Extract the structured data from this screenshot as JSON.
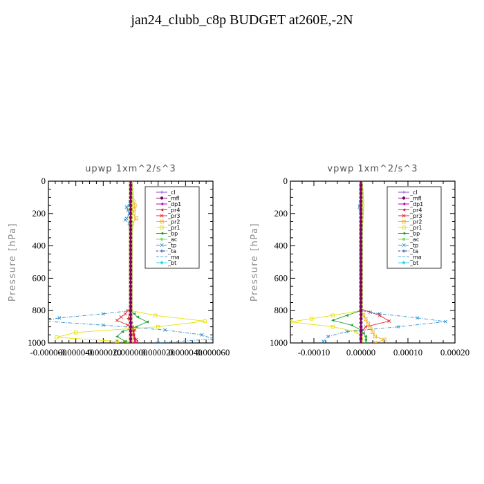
{
  "figure": {
    "title": "jan24_clubb_c8p  BUDGET at260E,-2N"
  },
  "colors": {
    "cl": "#8e44d6",
    "mfl": "#800060",
    "dp1": "#c000b0",
    "pr4": "#d02040",
    "pr3": "#e8242c",
    "pr2": "#f0b020",
    "pr1": "#e8e000",
    "bp": "#1f9e3a",
    "ac": "#80e060",
    "tp": "#2a8cc8",
    "ta": "#1c3aa0",
    "ma": "#4aa8e0",
    "bt": "#30d8e8"
  },
  "chart_data": [
    {
      "type": "line",
      "title": "upwp   1xm^2/s^3",
      "ylabel": "Pressure [hPa]",
      "xlim": [
        -6e-05,
        6e-05
      ],
      "ylim": [
        1000,
        0
      ],
      "y_inverted": true,
      "xtick_labels": [
        "-0.000060",
        "-0.000040",
        "-0.000020",
        "0.000000",
        "0.000020",
        "0.000040",
        "0.000060"
      ],
      "xtick_values": [
        -6e-05,
        -4e-05,
        -2e-05,
        0,
        2e-05,
        4e-05,
        6e-05
      ],
      "ytick_labels": [
        "0",
        "200",
        "400",
        "600",
        "800",
        "1000"
      ],
      "ytick_values": [
        0,
        200,
        400,
        600,
        800,
        1000
      ],
      "legend_position": "upper-right",
      "series": [
        {
          "name": "_cl",
          "key": "cl",
          "y": [
            0,
            100,
            200,
            300,
            400,
            500,
            600,
            700,
            800,
            850,
            900,
            950,
            1000
          ],
          "x": [
            0,
            0,
            0,
            0,
            0,
            0,
            0,
            0,
            0,
            0,
            0,
            0,
            0
          ]
        },
        {
          "name": "_mfl",
          "key": "mfl",
          "y": [
            0,
            100,
            200,
            300,
            400,
            500,
            600,
            700,
            800,
            850,
            900,
            950,
            1000
          ],
          "x": [
            0,
            0,
            0,
            0,
            0,
            0,
            0,
            0,
            0,
            0,
            0,
            0,
            0
          ]
        },
        {
          "name": "_dp1",
          "key": "dp1",
          "y": [
            0,
            200,
            400,
            600,
            800,
            850,
            900,
            950,
            1000
          ],
          "x": [
            0,
            0,
            0,
            0,
            0,
            0,
            1e-06,
            2e-06,
            3e-06
          ]
        },
        {
          "name": "_pr4",
          "key": "pr4",
          "y": [
            0,
            200,
            400,
            600,
            800,
            850,
            900,
            950,
            1000
          ],
          "x": [
            0,
            0,
            0,
            0,
            0,
            -2e-06,
            1e-06,
            2e-06,
            4e-06
          ]
        },
        {
          "name": "_pr3",
          "key": "pr3",
          "y": [
            0,
            200,
            400,
            600,
            780,
            820,
            860,
            890,
            920,
            950,
            980,
            1000
          ],
          "x": [
            0,
            0,
            0,
            0,
            0,
            -4e-06,
            -1e-05,
            -2e-06,
            3e-06,
            2e-06,
            4e-06,
            3e-06
          ]
        },
        {
          "name": "_pr2",
          "key": "pr2",
          "y": [
            0,
            100,
            150,
            200,
            230,
            260,
            300,
            400,
            600,
            800,
            1000
          ],
          "x": [
            0,
            1e-06,
            3e-06,
            2e-06,
            4e-06,
            1e-06,
            0,
            0,
            0,
            0,
            0
          ]
        },
        {
          "name": "_pr1",
          "key": "pr1",
          "y": [
            0,
            200,
            400,
            600,
            800,
            830,
            865,
            900,
            935,
            965,
            990,
            1000
          ],
          "x": [
            0,
            0,
            0,
            0,
            0,
            1.8e-05,
            5.4e-05,
            2e-05,
            -4e-05,
            -5.4e-05,
            -1e-05,
            0
          ]
        },
        {
          "name": "_bp",
          "key": "bp",
          "y": [
            0,
            200,
            400,
            600,
            800,
            840,
            870,
            900,
            930,
            960,
            990,
            1000
          ],
          "x": [
            0,
            0,
            0,
            0,
            0,
            5e-06,
            1.2e-05,
            4e-06,
            -6e-06,
            -1e-05,
            -4e-06,
            0
          ]
        },
        {
          "name": "_ac",
          "key": "ac",
          "y": [
            0,
            200,
            400,
            600,
            800,
            900,
            950,
            1000
          ],
          "x": [
            0,
            0,
            0,
            0,
            0,
            0,
            0,
            0
          ]
        },
        {
          "name": "_tp",
          "key": "tp",
          "y": [
            0,
            100,
            150,
            160,
            200,
            230,
            240,
            260,
            300,
            400,
            600,
            800,
            820,
            845,
            865,
            890,
            920,
            950,
            975,
            1000
          ],
          "x": [
            0,
            0,
            -1e-06,
            -3e-06,
            -1e-06,
            -3e-06,
            -4e-06,
            -1e-06,
            0,
            0,
            0,
            0,
            -2e-05,
            -5.2e-05,
            -6.4e-05,
            -2e-05,
            2.5e-05,
            5.2e-05,
            6e-05,
            2e-05
          ]
        },
        {
          "name": "_ta",
          "key": "ta",
          "y": [
            0,
            200,
            400,
            600,
            800,
            850,
            900,
            950,
            1000
          ],
          "x": [
            0,
            0,
            0,
            0,
            0,
            0,
            0,
            0,
            0
          ]
        },
        {
          "name": "_ma",
          "key": "ma",
          "y": [
            0,
            200,
            400,
            600,
            800,
            1000
          ],
          "x": [
            0,
            0,
            0,
            0,
            0,
            0
          ]
        },
        {
          "name": "_bt",
          "key": "bt",
          "y": [
            0,
            200,
            400,
            600,
            800,
            1000
          ],
          "x": [
            0,
            0,
            0,
            0,
            0,
            0
          ]
        }
      ]
    },
    {
      "type": "line",
      "title": "vpwp   1xm^2/s^3",
      "ylabel": "Pressure [hPa]",
      "xlim": [
        -0.00015,
        0.0002
      ],
      "ylim": [
        1000,
        0
      ],
      "y_inverted": true,
      "xtick_labels": [
        "-0.00010",
        "0.00000",
        "0.00010",
        "0.00020"
      ],
      "xtick_values": [
        -0.0001,
        0,
        0.0001,
        0.0002
      ],
      "ytick_labels": [
        "0",
        "200",
        "400",
        "600",
        "800",
        "1000"
      ],
      "ytick_values": [
        0,
        200,
        400,
        600,
        800,
        1000
      ],
      "legend_position": "upper-right",
      "series": [
        {
          "name": "_cl",
          "key": "cl",
          "y": [
            0,
            100,
            200,
            300,
            400,
            500,
            600,
            700,
            800,
            850,
            900,
            950,
            1000
          ],
          "x": [
            0,
            0,
            0,
            0,
            0,
            0,
            0,
            0,
            0,
            0,
            0,
            0,
            0
          ]
        },
        {
          "name": "_mfl",
          "key": "mfl",
          "y": [
            0,
            100,
            200,
            300,
            400,
            500,
            600,
            700,
            800,
            850,
            900,
            950,
            1000
          ],
          "x": [
            0,
            0,
            0,
            0,
            0,
            0,
            0,
            0,
            0,
            0,
            0,
            0,
            0
          ]
        },
        {
          "name": "_dp1",
          "key": "dp1",
          "y": [
            0,
            200,
            400,
            600,
            800,
            900,
            1000
          ],
          "x": [
            0,
            0,
            0,
            0,
            0,
            0,
            0
          ]
        },
        {
          "name": "_pr4",
          "key": "pr4",
          "y": [
            0,
            200,
            400,
            600,
            800,
            900,
            1000
          ],
          "x": [
            0,
            0,
            0,
            0,
            0,
            0,
            0
          ]
        },
        {
          "name": "_pr3",
          "key": "pr3",
          "y": [
            0,
            200,
            400,
            600,
            790,
            830,
            865,
            900,
            940,
            1000
          ],
          "x": [
            0,
            0,
            0,
            0,
            0,
            4e-05,
            6e-05,
            1e-05,
            0,
            0
          ]
        },
        {
          "name": "_pr2",
          "key": "pr2",
          "y": [
            0,
            100,
            150,
            200,
            300,
            400,
            600,
            800,
            960,
            980,
            1000
          ],
          "x": [
            0,
            2e-06,
            3e-06,
            2e-06,
            0,
            0,
            0,
            0,
            3e-05,
            5e-05,
            3e-05
          ]
        },
        {
          "name": "_pr1",
          "key": "pr1",
          "y": [
            0,
            200,
            400,
            600,
            800,
            830,
            870,
            900,
            930,
            960,
            1000
          ],
          "x": [
            0,
            0,
            0,
            0,
            0,
            -6e-05,
            -0.00015,
            -6e-05,
            -1e-05,
            0,
            0
          ]
        },
        {
          "name": "_bp",
          "key": "bp",
          "y": [
            0,
            200,
            400,
            600,
            800,
            830,
            860,
            890,
            920,
            960,
            1000
          ],
          "x": [
            0,
            0,
            0,
            0,
            0,
            -3e-05,
            -6e-05,
            -2e-05,
            0,
            1e-05,
            1e-05
          ]
        },
        {
          "name": "_ac",
          "key": "ac",
          "y": [
            0,
            200,
            400,
            600,
            800,
            900,
            1000
          ],
          "x": [
            0,
            0,
            0,
            0,
            0,
            0,
            0
          ]
        },
        {
          "name": "_tp",
          "key": "tp",
          "y": [
            0,
            100,
            150,
            160,
            200,
            300,
            400,
            600,
            800,
            820,
            845,
            868,
            900,
            930,
            960,
            990
          ],
          "x": [
            0,
            0,
            -2e-06,
            -3e-06,
            0,
            0,
            0,
            0,
            0,
            4e-05,
            0.00012,
            0.00018,
            8e-05,
            -3e-05,
            -7e-05,
            -8e-05
          ]
        },
        {
          "name": "_ta",
          "key": "ta",
          "y": [
            0,
            200,
            400,
            600,
            800,
            1000
          ],
          "x": [
            0,
            0,
            0,
            0,
            0,
            0
          ]
        },
        {
          "name": "_ma",
          "key": "ma",
          "y": [
            0,
            200,
            400,
            600,
            800,
            1000
          ],
          "x": [
            0,
            0,
            0,
            0,
            0,
            0
          ]
        },
        {
          "name": "_bt",
          "key": "bt",
          "y": [
            0,
            200,
            400,
            600,
            800,
            1000
          ],
          "x": [
            0,
            0,
            0,
            0,
            0,
            0
          ]
        }
      ]
    }
  ]
}
